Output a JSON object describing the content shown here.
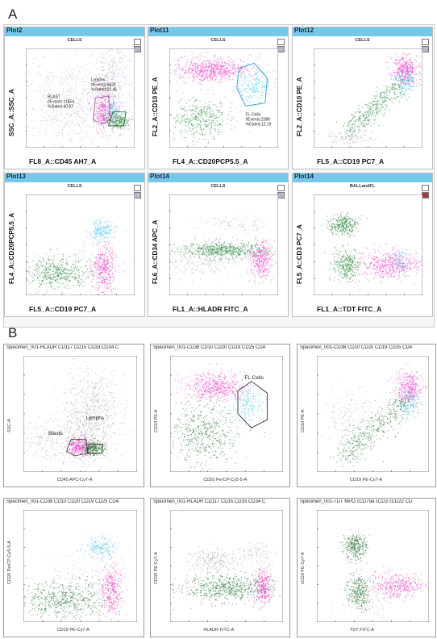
{
  "figure": {
    "label_a": "A",
    "label_b": "B"
  },
  "panel_a": {
    "plots": [
      {
        "header": "Plot2",
        "gate": "CELLS",
        "y_label": "SSC_A::SSC_A",
        "x_label": "FL8_A::CD45 AH7_A",
        "annotations": [
          {
            "lines": [
              "BLAST",
              "#Events:11654",
              "%Gated:40.67"
            ]
          },
          {
            "lines": [
              "Lymphs",
              "#Events:6622",
              "%Gated:22.46"
            ]
          }
        ]
      },
      {
        "header": "Plot11",
        "gate": "CELLS",
        "y_label": "FL2_A::CD10 PE_A",
        "x_label": "FL4_A::CD20PCP5.5_A",
        "annotations": [
          {
            "lines": [
              "FL-Cells",
              "#Events:2386",
              "%Gated:12.19"
            ]
          }
        ]
      },
      {
        "header": "Plot12",
        "gate": "CELLS",
        "y_label": "FL2_A::CD10 PE_A",
        "x_label": "FL5_A::CD19 PC7_A",
        "annotations": []
      },
      {
        "header": "Plot13",
        "gate": "CELLS",
        "y_label": "FL4_A::CD20PCP5.5_A",
        "x_label": "FL5_A::CD19 PC7_A",
        "annotations": []
      },
      {
        "header": "Plot14",
        "gate": "CELLS",
        "y_label": "FL6_A::CD34 APC_A",
        "x_label": "FL1_A::HLADR FITC_A",
        "annotations": []
      },
      {
        "header": "Plot14",
        "gate": "BALLandFL",
        "y_label": "FL5_A::CD3 PC7_A",
        "x_label": "FL1_A::TDT FITC_A",
        "annotations": []
      }
    ]
  },
  "panel_b": {
    "plots": [
      {
        "title": "Specimen_001-HLADR CD117 CD15 CD33 CD34 C",
        "y_label": "SSC-A",
        "x_label": "CD45 APC-Cy7-A",
        "annotations": [
          {
            "lines": [
              "Blasts"
            ]
          },
          {
            "lines": [
              "Lymphs"
            ]
          }
        ]
      },
      {
        "title": "Specimen_001-CD38 CD10 CD20 CD19 CD25 CD4",
        "y_label": "CD10 PE-A",
        "x_label": "CD20 PerCP-Cy5-5-A",
        "annotations": [
          {
            "lines": [
              "FL Cells"
            ]
          }
        ]
      },
      {
        "title": "Specimen_001-CD38 CD10 CD20 CD19 CD25 CD4",
        "y_label": "CD10 PE-A",
        "x_label": "CD19 PE-Cy7-A",
        "annotations": []
      },
      {
        "title": "Specimen_001-CD38 CD10 CD20 CD19 CD25 CD4",
        "y_label": "CD20 PerCP-Cy5-5-A",
        "x_label": "CD19 PE-Cy7-A",
        "annotations": []
      },
      {
        "title": "Specimen_001-HLADR CD117 CD15 CD33 CD34 C",
        "y_label": "CD33 PE-Cy7-A",
        "x_label": "HLADR FITC-A",
        "annotations": []
      },
      {
        "title": "Specimen_001-TDT MPO cCD79a cCD3 cCD22 CD",
        "y_label": "cCD3 PE-Cy7-A",
        "x_label": "TDT FITC-A",
        "annotations": []
      }
    ]
  },
  "colors": {
    "blast_magenta": "#f03cc8",
    "fl_cyan": "#4cc4ea",
    "lymph_green": "#2e8a3e",
    "other_grey": "#b8b8cc",
    "header_blue": "#76c8ea"
  },
  "chart_data": [
    {
      "type": "scatter",
      "panel": "A",
      "plot": "Plot2",
      "x_scale": "log",
      "y_scale": "linear",
      "populations": [
        {
          "name": "BLAST",
          "color": "#f03cc8",
          "events": 11654,
          "percent_gated": 40.67
        },
        {
          "name": "Lymphs",
          "color": "#2e8a3e",
          "events": 6622,
          "percent_gated": 22.46
        }
      ]
    },
    {
      "type": "scatter",
      "panel": "A",
      "plot": "Plot11",
      "x_scale": "log",
      "y_scale": "log",
      "populations": [
        {
          "name": "FL-Cells",
          "color": "#4cc4ea",
          "events": 2386,
          "percent_gated": 12.19
        }
      ]
    },
    {
      "type": "scatter",
      "panel": "A",
      "plot": "Plot12",
      "x_scale": "log",
      "y_scale": "log"
    },
    {
      "type": "scatter",
      "panel": "A",
      "plot": "Plot13",
      "x_scale": "log",
      "y_scale": "log"
    },
    {
      "type": "scatter",
      "panel": "A",
      "plot": "Plot14",
      "x_scale": "log",
      "y_scale": "log"
    },
    {
      "type": "scatter",
      "panel": "A",
      "plot": "Plot14",
      "gate": "BALLandFL",
      "x_scale": "log",
      "y_scale": "log"
    },
    {
      "type": "scatter",
      "panel": "B",
      "x_scale": "log",
      "y_scale": "linear"
    },
    {
      "type": "scatter",
      "panel": "B",
      "x_scale": "log",
      "y_scale": "log"
    },
    {
      "type": "scatter",
      "panel": "B",
      "x_scale": "log",
      "y_scale": "log"
    },
    {
      "type": "scatter",
      "panel": "B",
      "x_scale": "log",
      "y_scale": "log"
    },
    {
      "type": "scatter",
      "panel": "B",
      "x_scale": "log",
      "y_scale": "log"
    },
    {
      "type": "scatter",
      "panel": "B",
      "x_scale": "log",
      "y_scale": "log"
    }
  ]
}
